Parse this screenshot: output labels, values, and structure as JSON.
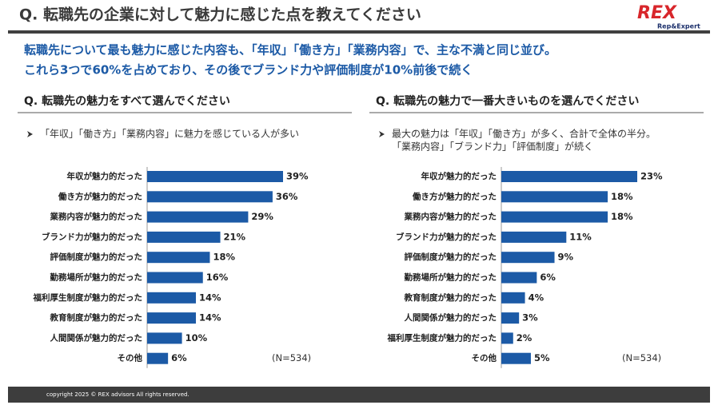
{
  "header": {
    "title": "Q. 転職先の企業に対して魅力に感じた点を教えてください",
    "logo": "REX",
    "logo_sub": "Rep&Expert"
  },
  "summary": [
    "転職先について最も魅力に感じた内容も、「年収」「働き方」「業務内容」で、主な不満と同じ並び。",
    "これら3つで60%を占めており、その後でブランド力や評価制度が10%前後で続く"
  ],
  "chart_data": [
    {
      "type": "bar",
      "orientation": "horizontal",
      "title": "Q. 転職先の魅力をすべて選んでください",
      "annotations": [
        "「年収」「働き方」「業務内容」に魅力を感じている人が多い"
      ],
      "categories": [
        "年収が魅力的だった",
        "働き方が魅力的だった",
        "業務内容が魅力的だった",
        "ブランド力が魅力的だった",
        "評価制度が魅力的だった",
        "勤務場所が魅力的だった",
        "福利厚生制度が魅力的だった",
        "教育制度が魅力的だった",
        "人間関係が魅力的だった",
        "その他"
      ],
      "values": [
        39,
        36,
        29,
        21,
        18,
        16,
        14,
        14,
        10,
        6
      ],
      "value_labels": [
        "39%",
        "36%",
        "29%",
        "21%",
        "18%",
        "16%",
        "14%",
        "14%",
        "10%",
        "6%"
      ],
      "color": "#1c5aa6",
      "note": "(N=534)"
    },
    {
      "type": "bar",
      "orientation": "horizontal",
      "title": "Q. 転職先の魅力で一番大きいものを選んでください",
      "annotations": [
        "最大の魅力は「年収」「働き方」が多く、合計で全体の半分。",
        "「業務内容」「ブランド力」「評価制度」が続く"
      ],
      "categories": [
        "年収が魅力的だった",
        "働き方が魅力的だった",
        "業務内容が魅力的だった",
        "ブランド力が魅力的だった",
        "評価制度が魅力的だった",
        "勤務場所が魅力的だった",
        "教育制度が魅力的だった",
        "人間関係が魅力的だった",
        "福利厚生制度が魅力的だった",
        "その他"
      ],
      "values": [
        23,
        18,
        18,
        11,
        9,
        6,
        4,
        3,
        2,
        5
      ],
      "value_labels": [
        "23%",
        "18%",
        "18%",
        "11%",
        "9%",
        "6%",
        "4%",
        "3%",
        "2%",
        "5%"
      ],
      "color": "#1c5aa6",
      "note": "(N=534)"
    }
  ],
  "footer": "copyright 2025 © REX advisors All rights reserved."
}
